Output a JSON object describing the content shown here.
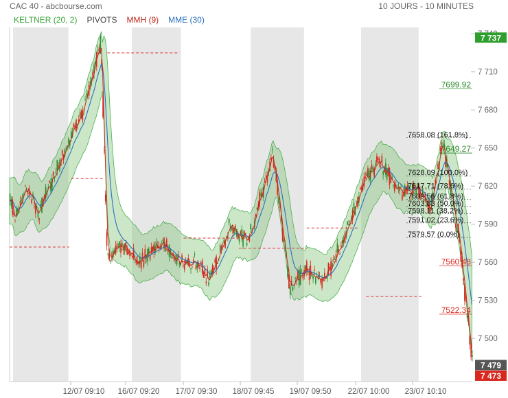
{
  "header": {
    "title": "CAC 40 - abcbourse.com",
    "period": "10 JOURS - 10 MINUTES"
  },
  "legend": [
    {
      "label": "KELTNER (20, 2)",
      "color": "#3aa53a"
    },
    {
      "label": "PIVOTS",
      "color": "#444444"
    },
    {
      "label": "MMH (9)",
      "color": "#c0281e"
    },
    {
      "label": "MME (30)",
      "color": "#2a6fbf"
    }
  ],
  "chart_data": {
    "type": "candlestick",
    "x_labels": [
      "12/07 09:10",
      "16/07 09:20",
      "17/07 09:30",
      "18/07 09:45",
      "19/07 09:50",
      "22/07 10:00",
      "23/07 10:10"
    ],
    "y_ticks": [
      "7 740",
      "7 710",
      "7 680",
      "7 650",
      "7 620",
      "7 590",
      "7 560",
      "7 530",
      "7 500",
      "7 473"
    ],
    "ylim": [
      7466,
      7745
    ],
    "price_path": [
      [
        0,
        7615
      ],
      [
        12,
        7592
      ],
      [
        40,
        7618
      ],
      [
        70,
        7600
      ],
      [
        100,
        7625
      ],
      [
        140,
        7655
      ],
      [
        175,
        7680
      ],
      [
        215,
        7735
      ],
      [
        230,
        7560
      ],
      [
        260,
        7575
      ],
      [
        300,
        7560
      ],
      [
        360,
        7575
      ],
      [
        400,
        7560
      ],
      [
        440,
        7560
      ],
      [
        470,
        7545
      ],
      [
        520,
        7590
      ],
      [
        560,
        7575
      ],
      [
        620,
        7645
      ],
      [
        660,
        7540
      ],
      [
        700,
        7555
      ],
      [
        740,
        7545
      ],
      [
        790,
        7580
      ],
      [
        830,
        7620
      ],
      [
        870,
        7640
      ],
      [
        920,
        7615
      ],
      [
        960,
        7620
      ],
      [
        990,
        7600
      ],
      [
        1020,
        7655
      ],
      [
        1060,
        7575
      ],
      [
        1090,
        7480
      ]
    ],
    "shaded_sessions": [
      [
        0,
        145
      ],
      [
        280,
        410
      ],
      [
        560,
        700
      ],
      [
        820,
        970
      ]
    ],
    "pivot_levels": [
      {
        "value": 7572,
        "from": 0,
        "to": 140
      },
      {
        "value": 7626,
        "from": 145,
        "to": 220
      },
      {
        "value": 7725,
        "from": 230,
        "to": 400
      },
      {
        "value": 7579,
        "from": 410,
        "to": 560
      },
      {
        "value": 7571,
        "from": 540,
        "to": 700
      },
      {
        "value": 7587,
        "from": 700,
        "to": 820
      },
      {
        "value": 7533,
        "from": 840,
        "to": 970
      }
    ],
    "fibonacci": [
      {
        "value": 7658.08,
        "label": "7658.08",
        "pct": "(161.8%)"
      },
      {
        "value": 7628.09,
        "label": "7628.09",
        "pct": "(100.0%)"
      },
      {
        "value": 7617.71,
        "label": "7617.71",
        "pct": "(78.6%)"
      },
      {
        "value": 7609.56,
        "label": "7609.56",
        "pct": "(61.8%)"
      },
      {
        "value": 7603.83,
        "label": "7603.83",
        "pct": "(50.0%)"
      },
      {
        "value": 7598.11,
        "label": "7598.11",
        "pct": "(38.2%)"
      },
      {
        "value": 7591.02,
        "label": "7591.02",
        "pct": "(23.6%)"
      },
      {
        "value": 7579.57,
        "label": "7579.57",
        "pct": "(0.0%)"
      }
    ],
    "price_labels": [
      {
        "value": 7699.92,
        "label": "7699.92",
        "color": "#2e8b2e"
      },
      {
        "value": 7649.27,
        "label": "7649.27",
        "color": "#2e8b2e"
      },
      {
        "value": 7560.48,
        "label": "7560.48",
        "color": "#d9281e"
      },
      {
        "value": 7522.34,
        "label": "7522.34",
        "color": "#d9281e"
      }
    ],
    "price_tags": [
      {
        "value": 7737,
        "label": "7 737",
        "color": "#2e9e2e"
      },
      {
        "value": 7479,
        "label": "7 479",
        "color": "#555555"
      },
      {
        "value": 7473,
        "label": "7 473",
        "color": "#d9281e"
      }
    ]
  }
}
